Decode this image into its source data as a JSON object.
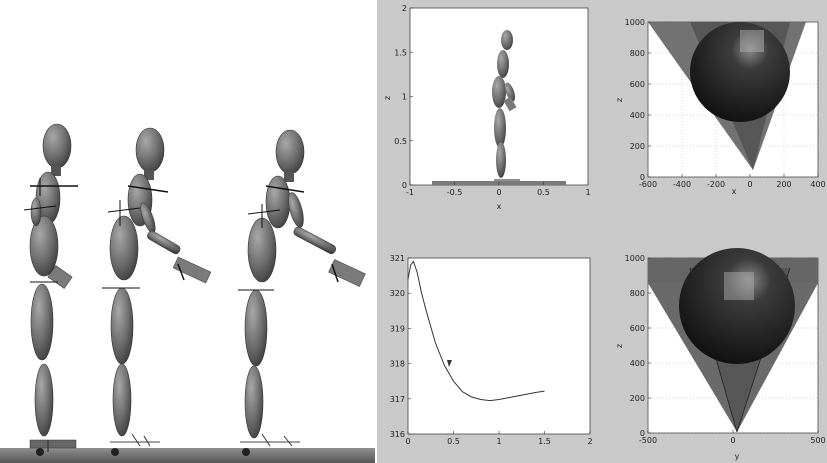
{
  "figure": {
    "panels": [
      {
        "id": "side-view",
        "xlabel": "x",
        "ylabel": "z",
        "x_ticks": [
          "-1",
          "-0.5",
          "0",
          "0.5",
          "1"
        ],
        "y_ticks": [
          "0",
          "0.5",
          "1",
          "1.5",
          "2"
        ]
      },
      {
        "id": "cone-xz",
        "xlabel": "x",
        "ylabel": "z",
        "x_ticks": [
          "-600",
          "-400",
          "-200",
          "0",
          "200",
          "400"
        ],
        "y_ticks": [
          "0",
          "200",
          "400",
          "600",
          "800",
          "1000"
        ]
      },
      {
        "id": "curve",
        "xlabel": "",
        "ylabel": "",
        "x_ticks": [
          "0",
          "0.5",
          "1",
          "1.5",
          "2"
        ],
        "y_ticks": [
          "316",
          "317",
          "318",
          "319",
          "320",
          "321"
        ]
      },
      {
        "id": "cone-yz",
        "xlabel": "y",
        "ylabel": "z",
        "x_ticks": [
          "-500",
          "0",
          "500"
        ],
        "y_ticks": [
          "0",
          "200",
          "400",
          "600",
          "800",
          "1000"
        ]
      }
    ]
  },
  "chart_data": {
    "type": "line",
    "title": "",
    "xlabel": "",
    "ylabel": "",
    "xlim": [
      0,
      2
    ],
    "ylim": [
      316,
      321
    ],
    "x": [
      0,
      0.03,
      0.06,
      0.1,
      0.15,
      0.2,
      0.3,
      0.4,
      0.5,
      0.6,
      0.7,
      0.8,
      0.9,
      1.0,
      1.1,
      1.2,
      1.3,
      1.4,
      1.5
    ],
    "y": [
      320.4,
      320.8,
      320.9,
      320.6,
      320.0,
      319.5,
      318.6,
      317.95,
      317.5,
      317.2,
      317.05,
      316.98,
      316.95,
      316.98,
      317.03,
      317.08,
      317.13,
      317.18,
      317.22
    ]
  }
}
